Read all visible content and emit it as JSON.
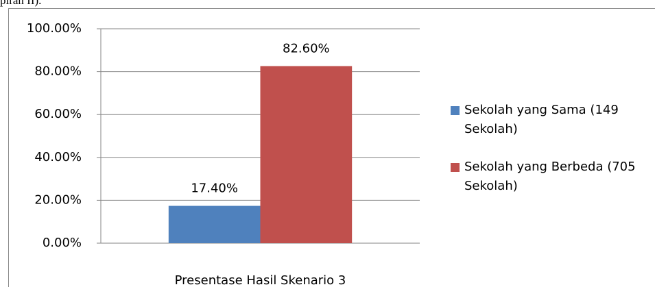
{
  "caption": "piran II).",
  "chart_data": {
    "type": "bar",
    "categories": [
      "Presentase Hasil Skenario 3"
    ],
    "series": [
      {
        "name": "Sekolah yang Sama (149 Sekolah)",
        "color": "#4f81bd",
        "values": [
          17.4
        ],
        "value_labels": [
          "17.40%"
        ]
      },
      {
        "name": "Sekolah yang Berbeda (705 Sekolah)",
        "color": "#c0504d",
        "values": [
          82.6
        ],
        "value_labels": [
          "82.60%"
        ]
      }
    ],
    "ylim": [
      0,
      100
    ],
    "yticks": [
      {
        "value": 0,
        "label": "0.00%"
      },
      {
        "value": 20,
        "label": "20.00%"
      },
      {
        "value": 40,
        "label": "40.00%"
      },
      {
        "value": 60,
        "label": "60.00%"
      },
      {
        "value": 80,
        "label": "80.00%"
      },
      {
        "value": 100,
        "label": "100.00%"
      }
    ],
    "grid": true,
    "legend": "right"
  }
}
